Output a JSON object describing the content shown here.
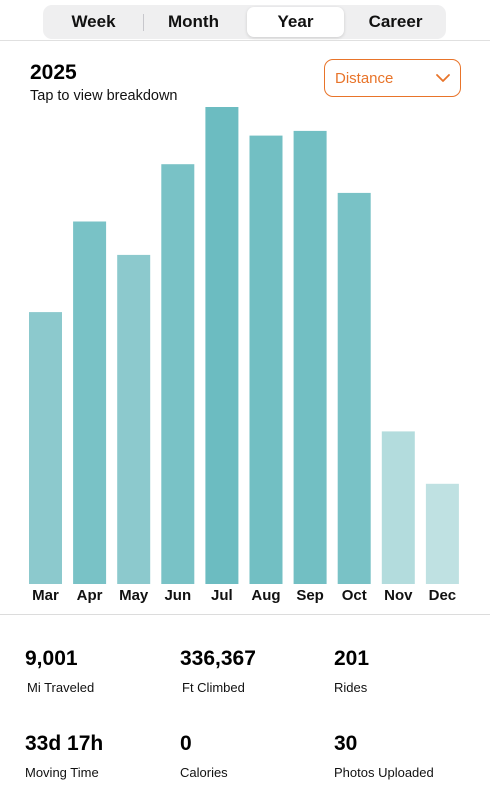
{
  "tabs": [
    {
      "label": "Week",
      "active": false
    },
    {
      "label": "Month",
      "active": false
    },
    {
      "label": "Year",
      "active": true
    },
    {
      "label": "Career",
      "active": false
    }
  ],
  "header": {
    "year": "2025",
    "hint": "Tap to view breakdown"
  },
  "metric_select": {
    "selected": "Distance",
    "icon": "chevron-down-icon",
    "accent_color": "#e8742a"
  },
  "chart_data": {
    "type": "bar",
    "categories": [
      "Mar",
      "Apr",
      "May",
      "Jun",
      "Jul",
      "Aug",
      "Sep",
      "Oct",
      "Nov",
      "Dec"
    ],
    "values": [
      57,
      76,
      69,
      88,
      100,
      94,
      95,
      82,
      32,
      21
    ],
    "ylim": [
      0,
      100
    ],
    "grid": false,
    "colors": [
      "#8cc9cd",
      "#79c2c6",
      "#8cc9cd",
      "#79c2c6",
      "#6cbcc1",
      "#72bfc3",
      "#72bfc3",
      "#79c2c6",
      "#b3dcdd",
      "#bfe1e2"
    ]
  },
  "stats": [
    {
      "value": "9,001",
      "label": "Mi Traveled"
    },
    {
      "value": "336,367",
      "label": "Ft Climbed"
    },
    {
      "value": "201",
      "label": "Rides"
    },
    {
      "value": "33d 17h",
      "label": "Moving Time"
    },
    {
      "value": "0",
      "label": "Calories"
    },
    {
      "value": "30",
      "label": "Photos Uploaded"
    }
  ]
}
